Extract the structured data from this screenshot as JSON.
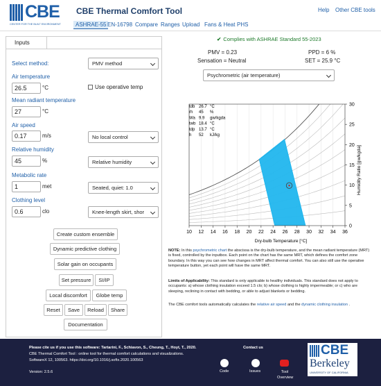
{
  "header": {
    "logo": "CBE",
    "logo_sub": "CENTER FOR THE BUILT ENVIRONMENT",
    "title": "CBE Thermal Comfort Tool",
    "links": [
      "Help",
      "Other CBE tools"
    ],
    "tabs": [
      "ASHRAE-55",
      "EN-16798",
      "Compare",
      "Ranges",
      "Upload",
      "Fans & Heat",
      "PHS"
    ]
  },
  "inputs": {
    "tab": "Inputs",
    "method_label": "Select method:",
    "method": "PMV method",
    "air_temp": {
      "label": "Air temperature",
      "value": 26.5,
      "unit": "°C",
      "checkbox": "Use operative temp"
    },
    "mrt": {
      "label": "Mean radiant temperature",
      "value": 27,
      "unit": "°C"
    },
    "air_speed": {
      "label": "Air speed",
      "value": 0.17,
      "unit": "m/s",
      "select": "No local control"
    },
    "rh": {
      "label": "Relative humidity",
      "value": 45,
      "unit": "%",
      "select": "Relative humidity"
    },
    "met": {
      "label": "Metabolic rate",
      "value": 1,
      "unit": "met",
      "select": "Seated, quiet: 1.0"
    },
    "clo": {
      "label": "Clothing level",
      "value": 0.6,
      "unit": "clo",
      "select": "Knee-length skirt, shor"
    },
    "buttons": [
      [
        "Create custom ensemble"
      ],
      [
        "Dynamic predictive clothing"
      ],
      [
        "Solar gain on occupants"
      ],
      [
        "Set pressure",
        "SI/IP"
      ],
      [
        "Local discomfort",
        "Globe temp"
      ],
      [
        "Reset",
        "Save",
        "Reload",
        "Share"
      ],
      [
        "Documentation"
      ]
    ]
  },
  "results": {
    "status": "Complies with ASHRAE Standard 55-2023",
    "pmv": "PMV = 0.23",
    "ppd": "PPD = 6 %",
    "sensation": "Sensation = Neutral",
    "set": "SET = 25.9 °C",
    "chart_select": "Psychrometric (air temperature)"
  },
  "chart": {
    "type": "psychrometric",
    "x_label": "Dry-bulb Temperature [°C]",
    "y2_label": "Humidity Ratio [gw/kgda]",
    "xlim": [
      10,
      36
    ],
    "xticks": [
      10,
      12,
      14,
      16,
      18,
      20,
      22,
      24,
      26,
      28,
      30,
      32,
      34,
      36
    ],
    "y2lim": [
      0,
      30
    ],
    "y2ticks": [
      0,
      5,
      10,
      15,
      20,
      25,
      30
    ],
    "grid": true,
    "zone_color": "#21b6ee",
    "comfort_zone": {
      "x": [
        24.3,
        21.7,
        25.9,
        29.4
      ],
      "y": [
        0,
        16.4,
        21.3,
        0
      ]
    },
    "readout": [
      {
        "label": "tdb",
        "value": 26.7,
        "unit": "°C"
      },
      {
        "label": "rh",
        "value": 45.0,
        "unit": "%"
      },
      {
        "label": "Wa",
        "value": 9.9,
        "unit": "gw/kgda"
      },
      {
        "label": "twb",
        "value": 18.4,
        "unit": "°C"
      },
      {
        "label": "tdp",
        "value": 13.7,
        "unit": "°C"
      },
      {
        "label": "h",
        "value": 52.0,
        "unit": "kJ/kg"
      }
    ]
  },
  "notes": [
    [
      {
        "b": "NOTE:"
      },
      {
        "t": " In this "
      },
      {
        "a": "psychrometric chart"
      },
      {
        "t": " the abscissa is the dry-bulb temperature, and the mean radiant temperature (MRT) is fixed, controlled by the inputbox. Each point on the chart has the same MRT, which defines the comfort zone boundary. In this way you can see how changes in MRT affect thermal comfort. You can also still use the operative temperature button, yet each point will have the same MRT."
      }
    ],
    [
      {
        "b": "Limits of Applicability:"
      },
      {
        "t": " This standard is only applicable to healthy individuals. This standard does not apply to occupants: a) whose clothing insulation exceed 1.5 clo; b) whose clothing is highly impermeable; or c) who are sleeping, reclining in contact with bedding, or able to adjust blankets or bedding."
      }
    ],
    [
      {
        "t": "The CBE comfort tools automatically calculates the "
      },
      {
        "a": "relative air speed"
      },
      {
        "t": " and the "
      },
      {
        "a": "dynamic clothing insulation"
      },
      {
        "t": " ."
      }
    ]
  ],
  "footer": {
    "cite": [
      "Please cite us if you use this software: Tartarini, F., Schiavon, S., Cheung, T., Hoyt, T., 2020.",
      "CBE Thermal Comfort Tool : online tool for thermal comfort calculations and visualizations.",
      "SoftwareX 12, 100563. https://doi.org/10.1016/j.softx.2020.100563"
    ],
    "version": "Version: 2.5.6",
    "contact": "Contact us",
    "icons": [
      "Code",
      "Issues",
      "Tool Overview"
    ],
    "logo": "CBE",
    "berkeley": "Berkeley",
    "uc": "UNIVERSITY OF CALIFORNIA"
  }
}
